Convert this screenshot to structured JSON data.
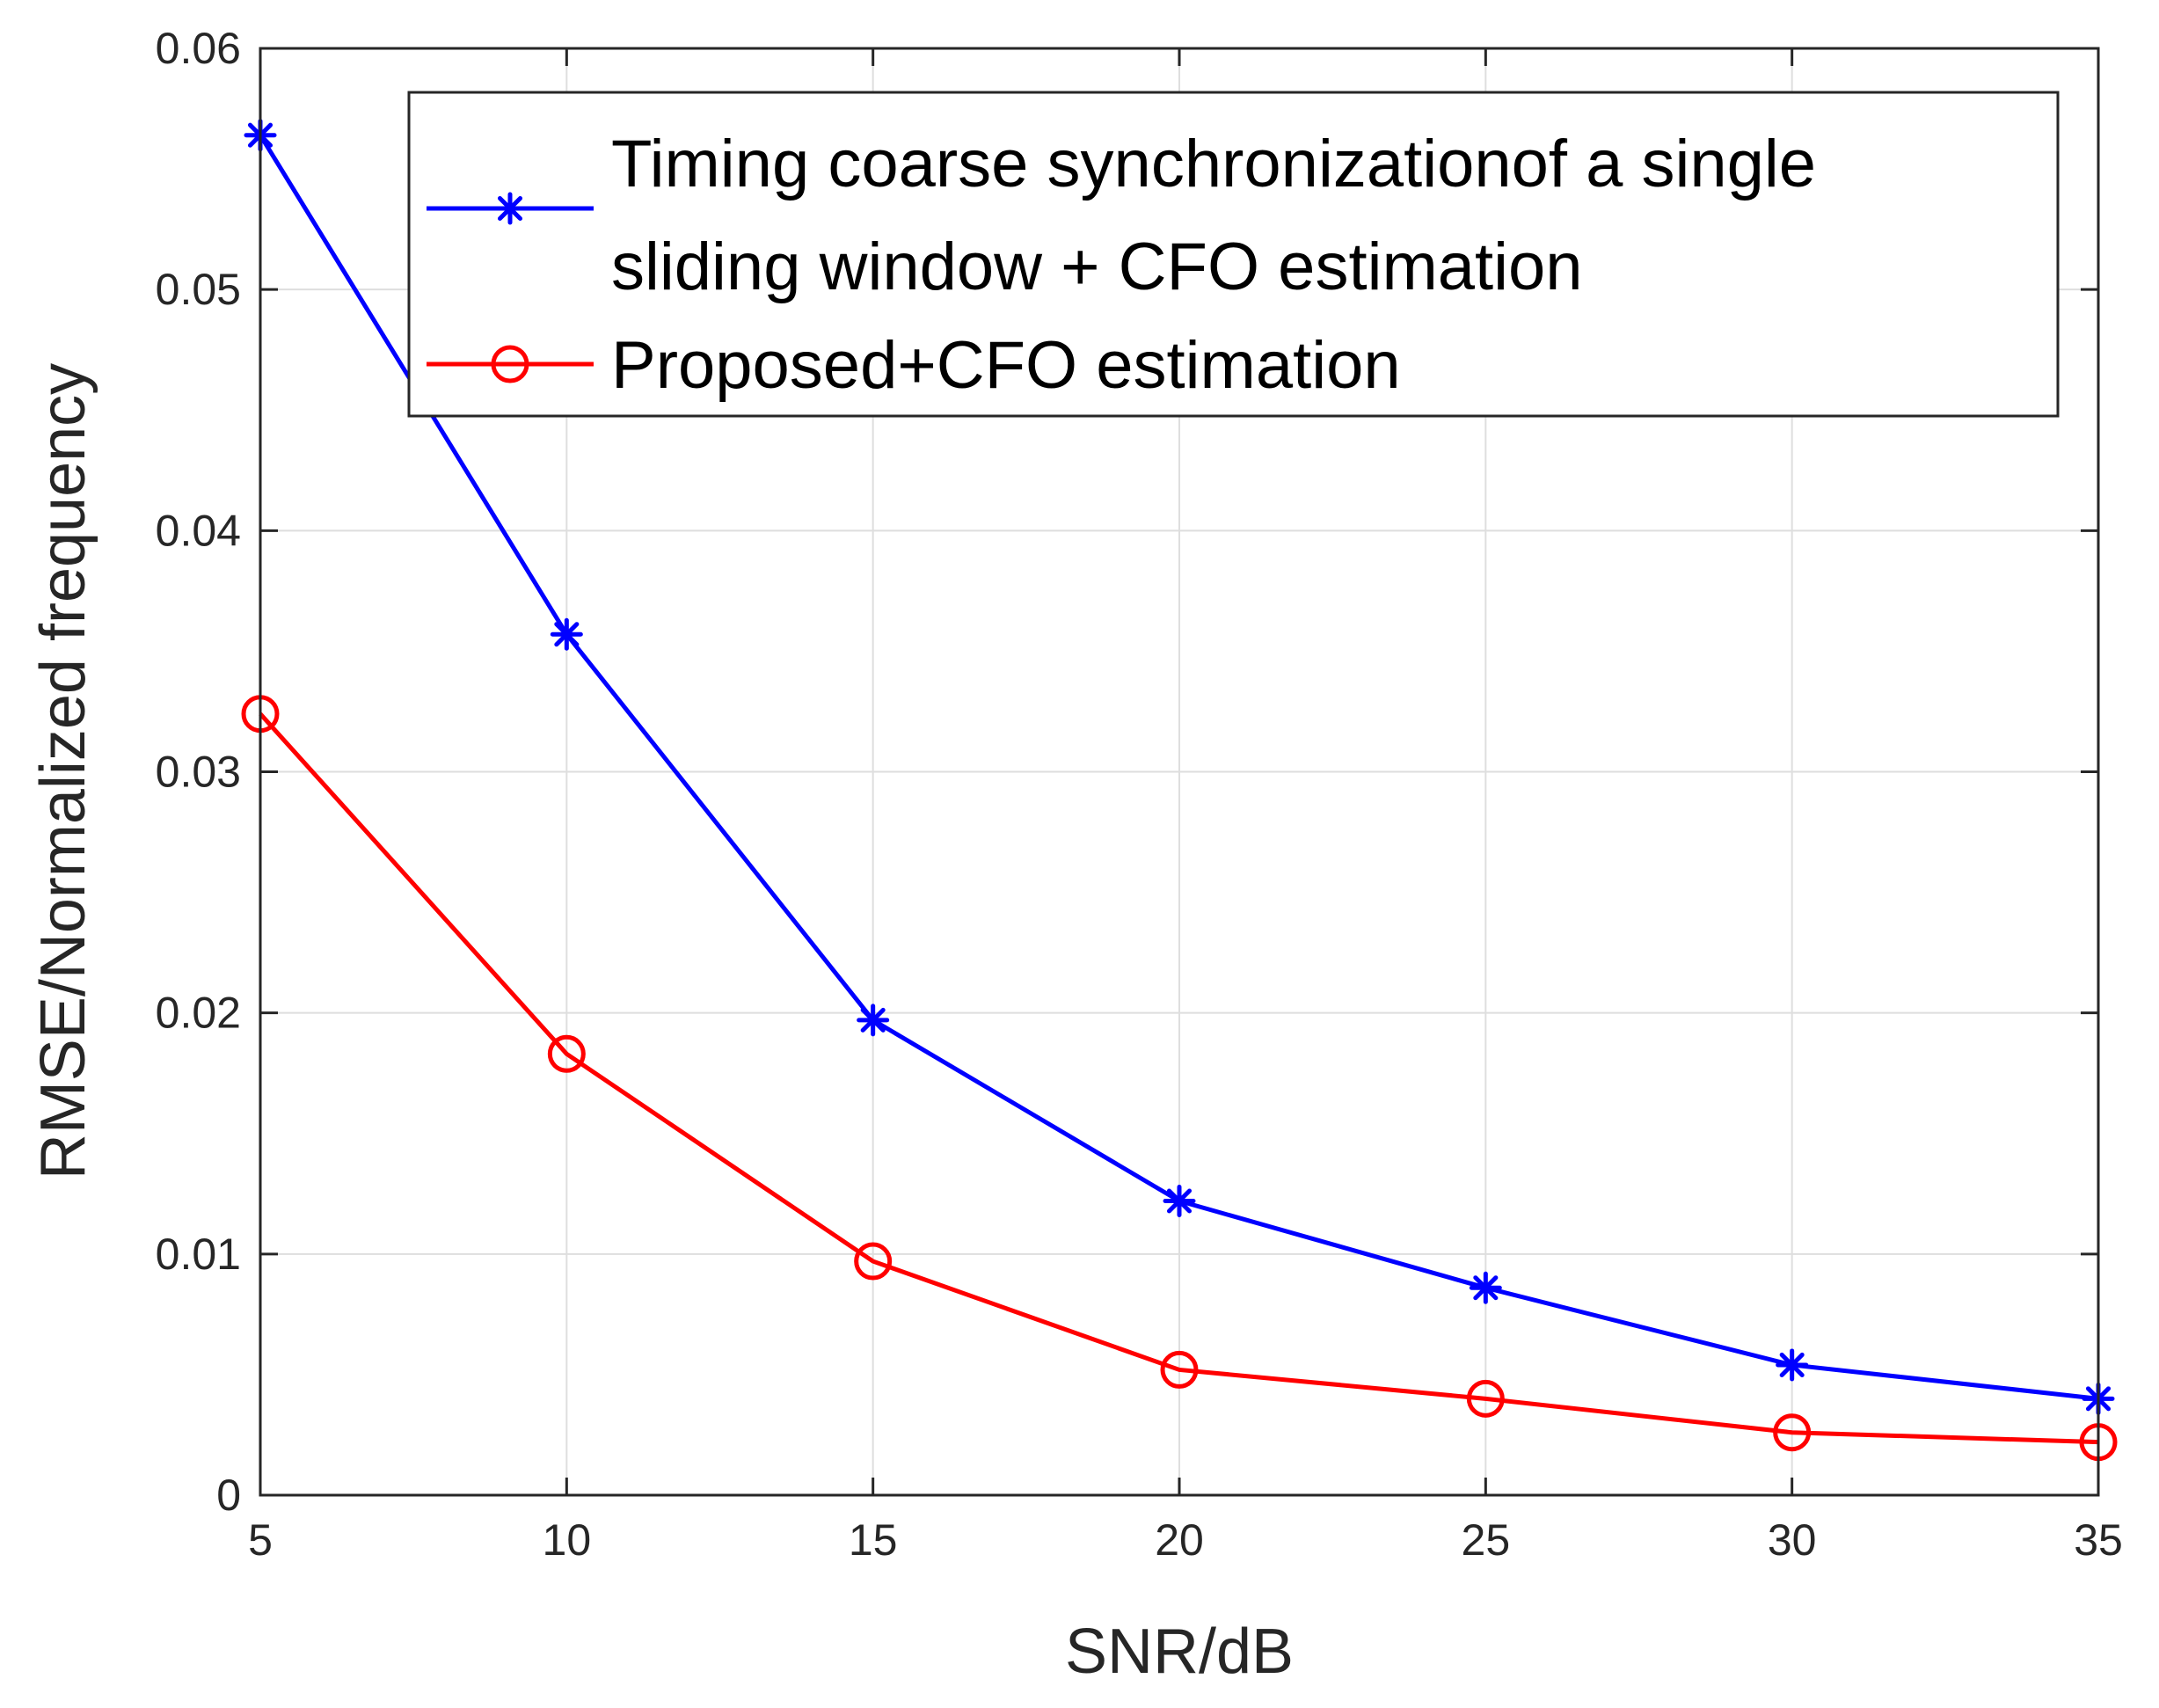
{
  "chart_data": {
    "type": "line",
    "title": "",
    "xlabel": "SNR/dB",
    "ylabel": "RMSE/Normalized frequency",
    "x": [
      5,
      10,
      15,
      20,
      25,
      30,
      35
    ],
    "xlim": [
      5,
      35
    ],
    "ylim": [
      0,
      0.06
    ],
    "xticks": [
      5,
      10,
      15,
      20,
      25,
      30,
      35
    ],
    "xtick_labels": [
      "5",
      "10",
      "15",
      "20",
      "25",
      "30",
      "35"
    ],
    "yticks": [
      0,
      0.01,
      0.02,
      0.03,
      0.04,
      0.05,
      0.06
    ],
    "ytick_labels": [
      "0",
      "0.01",
      "0.02",
      "0.03",
      "0.04",
      "0.05",
      "0.06"
    ],
    "grid": true,
    "legend_position": "top-right",
    "series": [
      {
        "name": "Timing coarse synchronizationof a single sliding window + CFO estimation",
        "legend_lines": [
          "Timing coarse synchronizationof a single",
          " sliding window + CFO estimation"
        ],
        "color": "#0000FF",
        "marker": "asterisk",
        "values": [
          0.0564,
          0.0357,
          0.0197,
          0.0122,
          0.0086,
          0.0054,
          0.004
        ]
      },
      {
        "name": "Proposed+CFO estimation",
        "legend_lines": [
          "Proposed+CFO estimation"
        ],
        "color": "#FF0000",
        "marker": "circle",
        "values": [
          0.0324,
          0.0183,
          0.0097,
          0.0052,
          0.004,
          0.0026,
          0.0022
        ]
      }
    ]
  }
}
